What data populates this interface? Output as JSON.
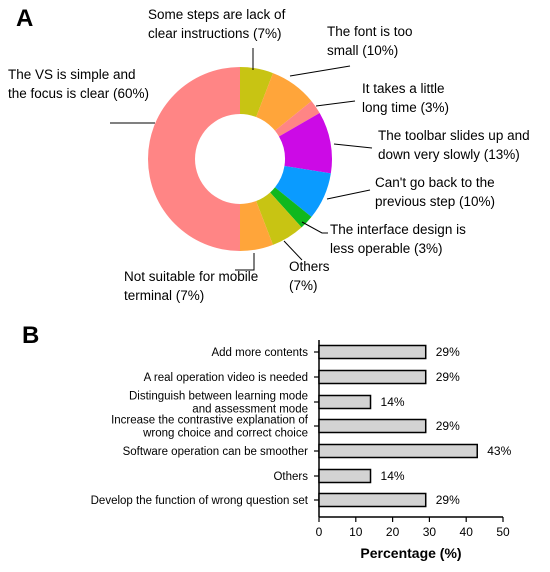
{
  "panels": {
    "a_label": "A",
    "b_label": "B"
  },
  "chart_data": [
    {
      "type": "pie",
      "donut": true,
      "slices": [
        {
          "label_lines": [
            "Some steps are lack of",
            "clear instructions (7%)"
          ],
          "value": 7,
          "color": "#c8c413"
        },
        {
          "label_lines": [
            "The font is too",
            "small (10%)"
          ],
          "value": 10,
          "color": "#ffa53a"
        },
        {
          "label_lines": [
            "It takes a little",
            "long time (3%)"
          ],
          "value": 3,
          "color": "#ff8585"
        },
        {
          "label_lines": [
            "The toolbar slides up and",
            "down very slowly (13%)"
          ],
          "value": 13,
          "color": "#cc0ae6"
        },
        {
          "label_lines": [
            "Can't go back to the",
            "previous step (10%)"
          ],
          "value": 10,
          "color": "#0a9bff"
        },
        {
          "label_lines": [
            "The interface design is",
            "less operable (3%)"
          ],
          "value": 3,
          "color": "#10b81e"
        },
        {
          "label_lines": [
            "Others",
            "(7%)"
          ],
          "value": 7,
          "color": "#c8c413"
        },
        {
          "label_lines": [
            "Not suitable for mobile",
            "terminal (7%)"
          ],
          "value": 7,
          "color": "#ffa53a"
        },
        {
          "label_lines": [
            "The  VS is simple and",
            "the focus is clear (60%)"
          ],
          "value": 60,
          "color": "#ff8585"
        }
      ]
    },
    {
      "type": "bar",
      "orientation": "horizontal",
      "categories": [
        [
          "Add more contents"
        ],
        [
          "A real operation video is needed"
        ],
        [
          "Distinguish between learning mode",
          "and assessment mode"
        ],
        [
          "Increase the contrastive explanation of",
          "wrong choice and correct choice"
        ],
        [
          "Software operation can be smoother"
        ],
        [
          "Others"
        ],
        [
          "Develop the function of wrong question set"
        ]
      ],
      "values": [
        29,
        29,
        14,
        29,
        43,
        14,
        29
      ],
      "value_labels": [
        "29%",
        "29%",
        "14%",
        "29%",
        "43%",
        "14%",
        "29%"
      ],
      "xlabel": "Percentage (%)",
      "xlim": [
        0,
        50
      ],
      "xticks": [
        0,
        10,
        20,
        30,
        40,
        50
      ],
      "bar_color": "#d3d3d3"
    }
  ]
}
